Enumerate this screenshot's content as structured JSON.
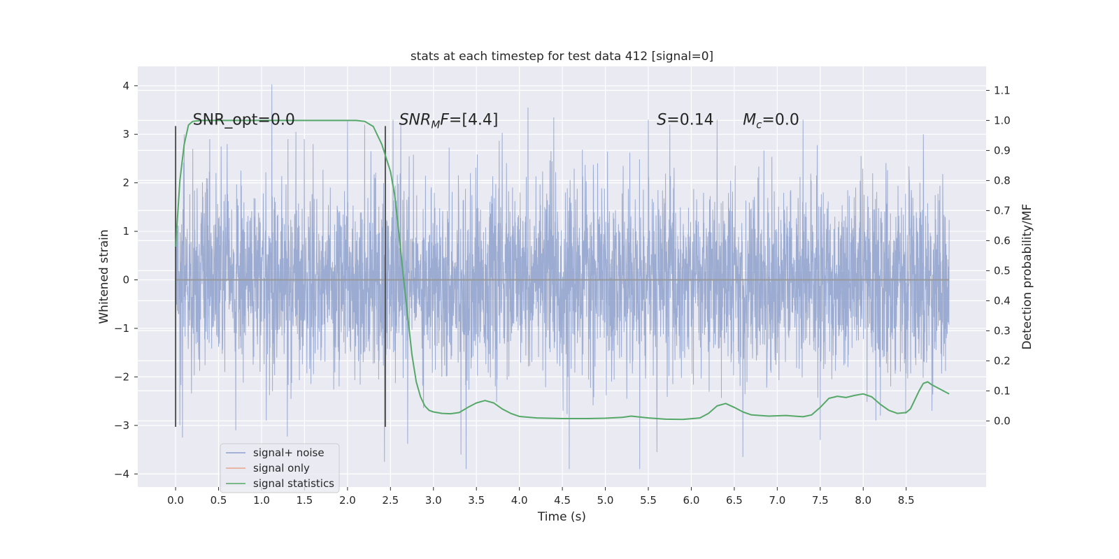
{
  "colors": {
    "plot_bg": "#eaeaf2",
    "grid": "#ffffff",
    "noise": "#8da0cb",
    "signal": "#e8a58b",
    "statistics": "#55a868",
    "marker": "#555555"
  },
  "chart_data": {
    "type": "line",
    "title": "stats at each timestep for test data 412 [signal=0]",
    "xlabel": "Time (s)",
    "ylabel_left": "Whitened strain",
    "ylabel_right": "Detection probability/MF",
    "xlim": [
      -0.44,
      9.43
    ],
    "ylim_left": [
      -4.27,
      4.4
    ],
    "ylim_right": [
      -0.22,
      1.18
    ],
    "grid": true,
    "legend_position": "lower-left",
    "x_ticks": [
      0.0,
      0.5,
      1.0,
      1.5,
      2.0,
      2.5,
      3.0,
      3.5,
      4.0,
      4.5,
      5.0,
      5.5,
      6.0,
      6.5,
      7.0,
      7.5,
      8.0,
      8.5
    ],
    "x_tick_labels": [
      "0.0",
      "0.5",
      "1.0",
      "1.5",
      "2.0",
      "2.5",
      "3.0",
      "3.5",
      "4.0",
      "4.5",
      "5.0",
      "5.5",
      "6.0",
      "6.5",
      "7.0",
      "7.5",
      "8.0",
      "8.5"
    ],
    "y_left_ticks": [
      -4,
      -3,
      -2,
      -1,
      0,
      1,
      2,
      3,
      4
    ],
    "y_left_tick_labels": [
      "−4",
      "−3",
      "−2",
      "−1",
      "0",
      "1",
      "2",
      "3",
      "4"
    ],
    "y_right_ticks": [
      0.0,
      0.1,
      0.2,
      0.3,
      0.4,
      0.5,
      0.6,
      0.7,
      0.8,
      0.9,
      1.0,
      1.1
    ],
    "y_right_tick_labels": [
      "0.0",
      "0.1",
      "0.2",
      "0.3",
      "0.4",
      "0.5",
      "0.6",
      "0.7",
      "0.8",
      "0.9",
      "1.0",
      "1.1"
    ],
    "annotations": [
      {
        "text": "SNR_opt=0.0",
        "x": 0.2,
        "y": 3.2,
        "axis": "left"
      },
      {
        "text": "SNR_MF=[4.4]",
        "x": 2.6,
        "y": 3.2,
        "axis": "left"
      },
      {
        "text": "S=0.14",
        "x": 5.6,
        "y": 3.2,
        "axis": "left"
      },
      {
        "text": "M_c=0.0",
        "x": 6.6,
        "y": 3.2,
        "axis": "left"
      }
    ],
    "markers": [
      {
        "x": 0.0,
        "y_range": [
          -3.03,
          3.17
        ]
      },
      {
        "x": 2.44,
        "y_range": [
          -3.03,
          3.17
        ]
      }
    ],
    "noise_series": {
      "name": "signal+ noise",
      "x_range": [
        0.0,
        9.0
      ],
      "sample_rate": 400,
      "envelope_peaks_up": [
        [
          0.1,
          3.0
        ],
        [
          0.2,
          2.7
        ],
        [
          0.53,
          2.75
        ],
        [
          0.6,
          2.8
        ],
        [
          1.12,
          4.03
        ],
        [
          1.4,
          3.05
        ],
        [
          1.6,
          2.8
        ],
        [
          2.0,
          3.3
        ],
        [
          2.2,
          3.2
        ],
        [
          2.53,
          3.3
        ],
        [
          2.62,
          3.2
        ],
        [
          3.8,
          3.03
        ],
        [
          4.1,
          3.55
        ],
        [
          4.4,
          3.35
        ],
        [
          5.5,
          3.3
        ],
        [
          5.75,
          3.2
        ],
        [
          6.3,
          3.3
        ],
        [
          7.3,
          3.3
        ],
        [
          8.2,
          3.3
        ],
        [
          8.7,
          3.0
        ]
      ],
      "envelope_peaks_down": [
        [
          0.05,
          -3.0
        ],
        [
          0.08,
          -3.25
        ],
        [
          0.7,
          -3.1
        ],
        [
          1.3,
          -3.23
        ],
        [
          2.43,
          -3.75
        ],
        [
          2.7,
          -3.38
        ],
        [
          3.32,
          -3.6
        ],
        [
          3.38,
          -3.9
        ],
        [
          4.58,
          -3.9
        ],
        [
          5.4,
          -3.9
        ],
        [
          5.6,
          -3.55
        ],
        [
          6.6,
          -3.65
        ],
        [
          7.5,
          -3.3
        ],
        [
          8.2,
          -2.8
        ],
        [
          8.8,
          -2.7
        ]
      ]
    },
    "signal_series": {
      "name": "signal only",
      "x": [
        0.0,
        9.0
      ],
      "y": [
        0.0,
        0.0
      ]
    },
    "statistics_series": {
      "name": "signal statistics",
      "x": [
        0.0,
        0.05,
        0.1,
        0.15,
        0.2,
        0.3,
        0.5,
        1.0,
        1.5,
        2.0,
        2.1,
        2.2,
        2.3,
        2.35,
        2.4,
        2.5,
        2.55,
        2.6,
        2.65,
        2.7,
        2.75,
        2.8,
        2.85,
        2.9,
        2.95,
        3.0,
        3.1,
        3.2,
        3.3,
        3.4,
        3.5,
        3.6,
        3.7,
        3.8,
        3.9,
        4.0,
        4.2,
        4.5,
        4.8,
        5.0,
        5.2,
        5.3,
        5.5,
        5.7,
        5.9,
        6.1,
        6.2,
        6.3,
        6.4,
        6.5,
        6.6,
        6.7,
        6.9,
        7.1,
        7.3,
        7.4,
        7.5,
        7.6,
        7.7,
        7.8,
        7.9,
        8.0,
        8.1,
        8.2,
        8.3,
        8.4,
        8.5,
        8.55,
        8.6,
        8.65,
        8.7,
        8.75,
        8.8,
        8.9,
        9.0
      ],
      "y": [
        0.58,
        0.8,
        0.92,
        0.985,
        0.997,
        1.0,
        1.0,
        1.0,
        1.0,
        1.0,
        1.0,
        0.997,
        0.98,
        0.95,
        0.92,
        0.83,
        0.75,
        0.62,
        0.48,
        0.35,
        0.22,
        0.13,
        0.08,
        0.05,
        0.035,
        0.03,
        0.025,
        0.024,
        0.028,
        0.045,
        0.06,
        0.068,
        0.06,
        0.04,
        0.025,
        0.015,
        0.01,
        0.008,
        0.008,
        0.009,
        0.012,
        0.016,
        0.01,
        0.006,
        0.005,
        0.01,
        0.025,
        0.05,
        0.058,
        0.045,
        0.03,
        0.02,
        0.016,
        0.018,
        0.014,
        0.02,
        0.045,
        0.075,
        0.082,
        0.078,
        0.085,
        0.09,
        0.08,
        0.055,
        0.035,
        0.025,
        0.028,
        0.04,
        0.07,
        0.1,
        0.125,
        0.13,
        0.12,
        0.105,
        0.09
      ]
    }
  }
}
